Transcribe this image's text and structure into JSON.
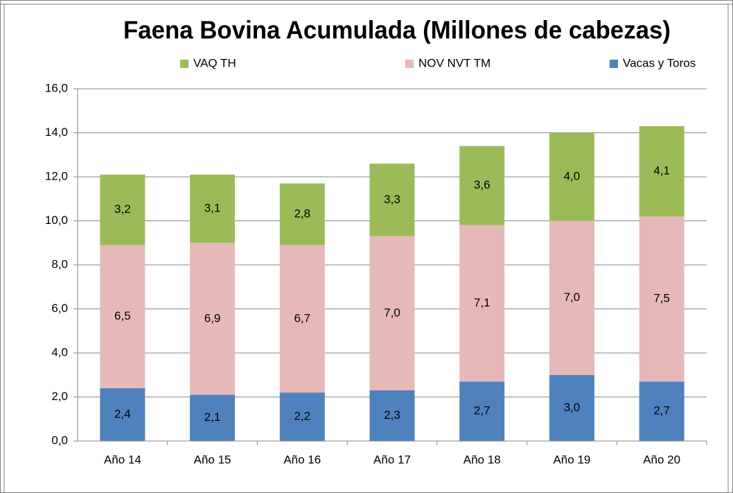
{
  "chart_data": {
    "type": "stacked_bar",
    "title": "Faena Bovina Acumulada (Millones de cabezas)",
    "categories": [
      "Año 14",
      "Año 15",
      "Año 16",
      "Año 17",
      "Año 18",
      "Año 19",
      "Año 20"
    ],
    "series": [
      {
        "name": "VAQ TH",
        "color": "#9bbb59",
        "values": [
          3.2,
          3.1,
          2.8,
          3.3,
          3.6,
          4.0,
          4.1
        ],
        "value_labels": [
          "3,2",
          "3,1",
          "2,8",
          "3,3",
          "3,6",
          "4,0",
          "4,1"
        ]
      },
      {
        "name": "NOV NVT TM",
        "color": "#e6b9b8",
        "values": [
          6.5,
          6.9,
          6.7,
          7.0,
          7.1,
          7.0,
          7.5
        ],
        "value_labels": [
          "6,5",
          "6,9",
          "6,7",
          "7,0",
          "7,1",
          "7,0",
          "7,5"
        ]
      },
      {
        "name": "Vacas y Toros",
        "color": "#4f81bd",
        "values": [
          2.4,
          2.1,
          2.2,
          2.3,
          2.7,
          3.0,
          2.7
        ],
        "value_labels": [
          "2,4",
          "2,1",
          "2,2",
          "2,3",
          "2,7",
          "3,0",
          "2,7"
        ]
      }
    ],
    "ylim": [
      0,
      16
    ],
    "yticks": [
      {
        "value": 0,
        "label": "0,0"
      },
      {
        "value": 2,
        "label": "2,0"
      },
      {
        "value": 4,
        "label": "4,0"
      },
      {
        "value": 6,
        "label": "6,0"
      },
      {
        "value": 8,
        "label": "8,0"
      },
      {
        "value": 10,
        "label": "10,0"
      },
      {
        "value": 12,
        "label": "12,0"
      },
      {
        "value": 14,
        "label": "14,0"
      },
      {
        "value": 16,
        "label": "16,0"
      }
    ],
    "grid": true,
    "legend": "top"
  }
}
